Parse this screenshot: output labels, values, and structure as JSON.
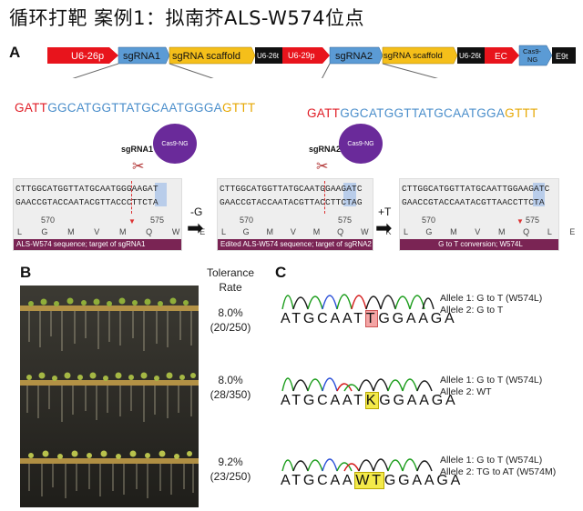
{
  "title": "循环打靶 案例1：拟南芥ALS-W574位点",
  "panelA": {
    "label": "A",
    "construct": [
      {
        "label": "U6-26p",
        "kind": "promoter"
      },
      {
        "label": "sgRNA1",
        "kind": "sg"
      },
      {
        "label": "sgRNA scaffold",
        "kind": "scaffold"
      },
      {
        "label": "U6-26t",
        "kind": "term"
      },
      {
        "label": "U6-29p",
        "kind": "promoter"
      },
      {
        "label": "sgRNA2",
        "kind": "sg"
      },
      {
        "label": "sgRNA scaffold",
        "kind": "scaffold"
      },
      {
        "label": "U6-26t",
        "kind": "term"
      },
      {
        "label": "EC",
        "kind": "promoter"
      },
      {
        "label": "Cas9-NG",
        "kind": "sg"
      },
      {
        "label": "E9t",
        "kind": "term"
      }
    ],
    "spacer1": {
      "red": "GATT",
      "blue": "GGCATGGTTATGCAATGGGA",
      "yellow": "GTTT"
    },
    "spacer2": {
      "red": "GATT",
      "blue": "GGCATGGTTATGCAATGGA",
      "yellow": "GTTT"
    },
    "cas_label": "Cas9-NG",
    "sg1_label": "sgRNA1",
    "sg2_label": "sgRNA2",
    "boxes": [
      {
        "top": "CTTGGCATGGTTATGCAATGGGAAGAT",
        "bottom": "GAACCGTACCAATACGTTACCCTTCTA",
        "ruler_a": "570",
        "ruler_b": "575",
        "aa": "L G M V M Q W E",
        "bar": "ALS-W574 sequence; target of sgRNA1"
      },
      {
        "top": "CTTGGCATGGTTATGCAATGGAAGATC",
        "bottom": "GAACCGTACCAATACGTTACCTTCTAG",
        "ruler_a": "570",
        "ruler_b": "575",
        "aa": "L G M V M Q W K I",
        "bar": "Edited ALS-W574 sequence; target of sgRNA2"
      },
      {
        "top": "CTTGGCATGGTTATGCAATTGGAAGATC",
        "bottom": "GAACCGTACCAATACGTTAACCTTCTA",
        "ruler_a": "570",
        "ruler_b": "575",
        "aa": "L G M V M Q L E D",
        "bar": "G to T conversion; W574L"
      }
    ],
    "arrow1": "-G",
    "arrow2": "+T"
  },
  "panelB": {
    "label": "B",
    "header": "Tolerance\nRate",
    "rows": [
      {
        "pct": "8.0%",
        "count": "(20/250)"
      },
      {
        "pct": "8.0%",
        "count": "(28/350)"
      },
      {
        "pct": "9.2%",
        "count": "(23/250)"
      }
    ]
  },
  "panelC": {
    "label": "C",
    "rows": [
      {
        "pre": "ATGCAAT",
        "mark": "T",
        "post": "GGAAGA",
        "allele1": "Allele 1: G to T (W574L)",
        "allele2": "Allele 2: G to T"
      },
      {
        "pre": "ATGCAAT",
        "mark": "K",
        "post": "GGAAGA",
        "allele1": "Allele 1: G to T (W574L)",
        "allele2": "Allele 2: WT"
      },
      {
        "pre": "ATGCAA",
        "mark": "WT",
        "post": "GGAAGA",
        "allele1": "Allele 1:  G to T  (W574L)",
        "allele2": "Allele 2: TG to AT (W574M)"
      }
    ]
  },
  "colors": {
    "promoter": "#e8141c",
    "sg": "#5b9bd5",
    "scaffold": "#f5bf1a",
    "term": "#111111",
    "bar": "#7a2454",
    "cas": "#6a2a9a"
  }
}
